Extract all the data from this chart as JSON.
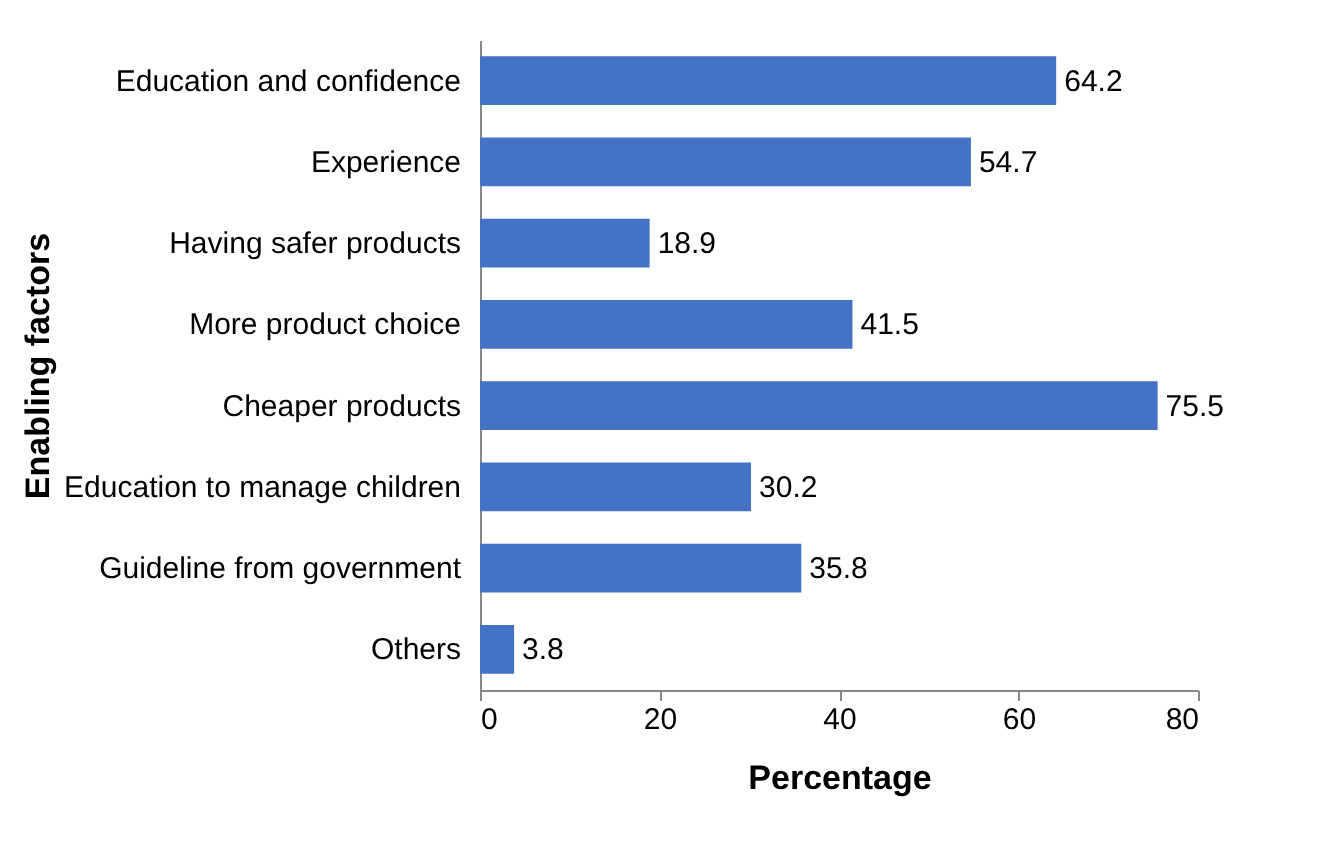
{
  "chart_data": {
    "type": "bar",
    "orientation": "horizontal",
    "xlabel": "Percentage",
    "ylabel": "Enabling factors",
    "categories": [
      "Education and confidence",
      "Experience",
      "Having safer products",
      "More product choice",
      "Cheaper products",
      "Education to manage children",
      "Guideline from government",
      "Others"
    ],
    "values": [
      64.2,
      54.7,
      18.9,
      41.5,
      75.5,
      30.2,
      35.8,
      3.8
    ],
    "color": "#4472c4",
    "xlim": [
      0,
      80
    ],
    "xticks": [
      0,
      20,
      40,
      60,
      80
    ],
    "data_labels": true,
    "grid": false
  }
}
